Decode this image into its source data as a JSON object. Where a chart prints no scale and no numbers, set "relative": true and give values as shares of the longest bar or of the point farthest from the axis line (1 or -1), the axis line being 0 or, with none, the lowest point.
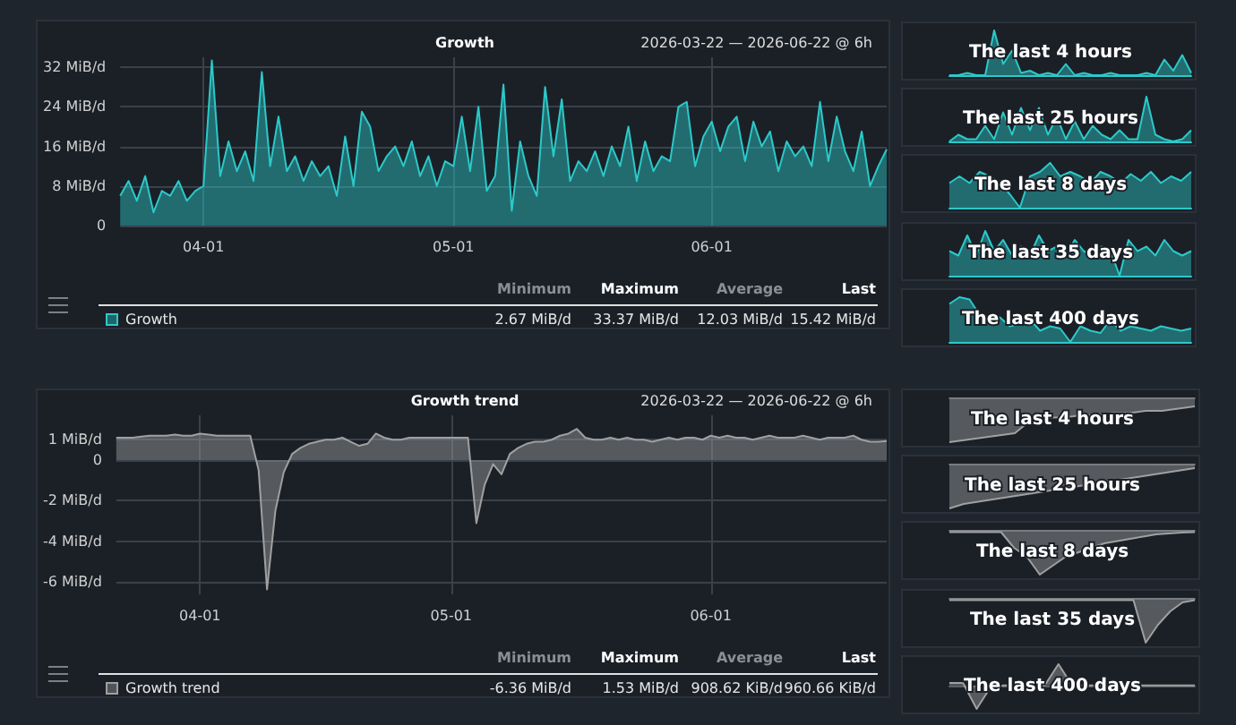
{
  "chart_data": [
    {
      "type": "area",
      "title": "Growth",
      "subtitle": "2026-03-22 — 2026-06-22 @ 6h",
      "legend": "bottom",
      "grid": true,
      "marker": "none",
      "x": [
        "2026-03-22",
        "2026-03-23",
        "2026-03-24",
        "2026-03-25",
        "2026-03-26",
        "2026-03-27",
        "2026-03-28",
        "2026-03-29",
        "2026-03-30",
        "2026-03-31",
        "2026-04-01",
        "2026-04-02",
        "2026-04-03",
        "2026-04-04",
        "2026-04-05",
        "2026-04-06",
        "2026-04-07",
        "2026-04-08",
        "2026-04-09",
        "2026-04-10",
        "2026-04-11",
        "2026-04-12",
        "2026-04-13",
        "2026-04-14",
        "2026-04-15",
        "2026-04-16",
        "2026-04-17",
        "2026-04-18",
        "2026-04-19",
        "2026-04-20",
        "2026-04-21",
        "2026-04-22",
        "2026-04-23",
        "2026-04-24",
        "2026-04-25",
        "2026-04-26",
        "2026-04-27",
        "2026-04-28",
        "2026-04-29",
        "2026-04-30",
        "2026-05-01",
        "2026-05-02",
        "2026-05-03",
        "2026-05-04",
        "2026-05-05",
        "2026-05-06",
        "2026-05-07",
        "2026-05-08",
        "2026-05-09",
        "2026-05-10",
        "2026-05-11",
        "2026-05-12",
        "2026-05-13",
        "2026-05-14",
        "2026-05-15",
        "2026-05-16",
        "2026-05-17",
        "2026-05-18",
        "2026-05-19",
        "2026-05-20",
        "2026-05-21",
        "2026-05-22",
        "2026-05-23",
        "2026-05-24",
        "2026-05-25",
        "2026-05-26",
        "2026-05-27",
        "2026-05-28",
        "2026-05-29",
        "2026-05-30",
        "2026-05-31",
        "2026-06-01",
        "2026-06-02",
        "2026-06-03",
        "2026-06-04",
        "2026-06-05",
        "2026-06-06",
        "2026-06-07",
        "2026-06-08",
        "2026-06-09",
        "2026-06-10",
        "2026-06-11",
        "2026-06-12",
        "2026-06-13",
        "2026-06-14",
        "2026-06-15",
        "2026-06-16",
        "2026-06-17",
        "2026-06-18",
        "2026-06-19",
        "2026-06-20",
        "2026-06-21",
        "2026-06-22"
      ],
      "series": [
        {
          "name": "Growth",
          "color": "#2cc9c9",
          "values": [
            6,
            9,
            5,
            10,
            2.67,
            7,
            6,
            9,
            5,
            7,
            8,
            33.37,
            10,
            17,
            11,
            15,
            9,
            31,
            12,
            22,
            11,
            14,
            9,
            13,
            10,
            12,
            6,
            18,
            8,
            23,
            20,
            11,
            14,
            16,
            12,
            17,
            10,
            14,
            8,
            13,
            12,
            22,
            11,
            24,
            7,
            10,
            28.5,
            3,
            17,
            10,
            6,
            28,
            14,
            25.5,
            9,
            13,
            11,
            15,
            10,
            16,
            12,
            20,
            9,
            17,
            11,
            14,
            13,
            24,
            25,
            12,
            18,
            21,
            15,
            20,
            22,
            13,
            21,
            16,
            19,
            11,
            17,
            14,
            16,
            12,
            25,
            13,
            22,
            15,
            11,
            19,
            8,
            12,
            15.42
          ]
        }
      ],
      "xlim": [
        "2026-03-22",
        "2026-06-22"
      ],
      "xticks": [
        {
          "value": "2026-04-01",
          "label": "04-01"
        },
        {
          "value": "2026-05-01",
          "label": "05-01"
        },
        {
          "value": "2026-06-01",
          "label": "06-01"
        }
      ],
      "ylim": [
        0,
        34
      ],
      "yticks": [
        0,
        {
          "value": 8,
          "label": "8 MiB/d"
        },
        {
          "value": 16,
          "label": "16 MiB/d"
        },
        {
          "value": 24,
          "label": "24 MiB/d"
        },
        {
          "value": 32,
          "label": "32 MiB/d"
        }
      ],
      "annotations": [
        "Minimum",
        "Maximum",
        "Average",
        "Last",
        "2.67 MiB/d",
        "33.37 MiB/d",
        "12.03 MiB/d",
        "15.42 MiB/d"
      ]
    },
    {
      "type": "area",
      "title": "Growth trend",
      "subtitle": "2026-03-22 — 2026-06-22 @ 6h",
      "legend": "bottom",
      "grid": true,
      "marker": "none",
      "x": [
        "2026-03-22",
        "2026-03-23",
        "2026-03-24",
        "2026-03-25",
        "2026-03-26",
        "2026-03-27",
        "2026-03-28",
        "2026-03-29",
        "2026-03-30",
        "2026-03-31",
        "2026-04-01",
        "2026-04-02",
        "2026-04-03",
        "2026-04-04",
        "2026-04-05",
        "2026-04-06",
        "2026-04-07",
        "2026-04-08",
        "2026-04-09",
        "2026-04-10",
        "2026-04-11",
        "2026-04-12",
        "2026-04-13",
        "2026-04-14",
        "2026-04-15",
        "2026-04-16",
        "2026-04-17",
        "2026-04-18",
        "2026-04-19",
        "2026-04-20",
        "2026-04-21",
        "2026-04-22",
        "2026-04-23",
        "2026-04-24",
        "2026-04-25",
        "2026-04-26",
        "2026-04-27",
        "2026-04-28",
        "2026-04-29",
        "2026-04-30",
        "2026-05-01",
        "2026-05-02",
        "2026-05-03",
        "2026-05-04",
        "2026-05-05",
        "2026-05-06",
        "2026-05-07",
        "2026-05-08",
        "2026-05-09",
        "2026-05-10",
        "2026-05-11",
        "2026-05-12",
        "2026-05-13",
        "2026-05-14",
        "2026-05-15",
        "2026-05-16",
        "2026-05-17",
        "2026-05-18",
        "2026-05-19",
        "2026-05-20",
        "2026-05-21",
        "2026-05-22",
        "2026-05-23",
        "2026-05-24",
        "2026-05-25",
        "2026-05-26",
        "2026-05-27",
        "2026-05-28",
        "2026-05-29",
        "2026-05-30",
        "2026-05-31",
        "2026-06-01",
        "2026-06-02",
        "2026-06-03",
        "2026-06-04",
        "2026-06-05",
        "2026-06-06",
        "2026-06-07",
        "2026-06-08",
        "2026-06-09",
        "2026-06-10",
        "2026-06-11",
        "2026-06-12",
        "2026-06-13",
        "2026-06-14",
        "2026-06-15",
        "2026-06-16",
        "2026-06-17",
        "2026-06-18",
        "2026-06-19",
        "2026-06-20",
        "2026-06-21",
        "2026-06-22"
      ],
      "series": [
        {
          "name": "Growth trend",
          "color": "#a0a0a0",
          "values": [
            1.1,
            1.1,
            1.1,
            1.15,
            1.2,
            1.2,
            1.2,
            1.25,
            1.2,
            1.2,
            1.3,
            1.25,
            1.2,
            1.2,
            1.2,
            1.2,
            1.2,
            -0.5,
            -6.36,
            -2.5,
            -0.6,
            0.3,
            0.6,
            0.8,
            0.9,
            1.0,
            1.0,
            1.1,
            0.9,
            0.7,
            0.8,
            1.3,
            1.1,
            1.0,
            1.0,
            1.1,
            1.1,
            1.1,
            1.1,
            1.1,
            1.1,
            1.1,
            1.1,
            -3.1,
            -1.2,
            -0.2,
            -0.7,
            0.3,
            0.6,
            0.8,
            0.9,
            0.9,
            1.0,
            1.2,
            1.3,
            1.53,
            1.1,
            1.0,
            1.0,
            1.1,
            1.0,
            1.1,
            1.0,
            1.0,
            0.9,
            1.0,
            1.1,
            1.0,
            1.1,
            1.1,
            1.0,
            1.2,
            1.1,
            1.2,
            1.1,
            1.1,
            1.0,
            1.1,
            1.2,
            1.1,
            1.1,
            1.1,
            1.2,
            1.1,
            1.0,
            1.1,
            1.1,
            1.1,
            1.2,
            1.0,
            0.9,
            0.9,
            0.94
          ]
        }
      ],
      "xlim": [
        "2026-03-22",
        "2026-06-22"
      ],
      "xticks": [
        {
          "value": "2026-04-01",
          "label": "04-01"
        },
        {
          "value": "2026-05-01",
          "label": "05-01"
        },
        {
          "value": "2026-06-01",
          "label": "06-01"
        }
      ],
      "ylim": [
        -6.6,
        2.2
      ],
      "yticks": [
        {
          "value": -6,
          "label": "-6 MiB/d"
        },
        {
          "value": -4,
          "label": "-4 MiB/d"
        },
        {
          "value": -2,
          "label": "-2 MiB/d"
        },
        0,
        {
          "value": 1,
          "label": "1 MiB/d"
        }
      ],
      "annotations": [
        "Minimum",
        "Maximum",
        "Average",
        "Last",
        "-6.36 MiB/d",
        "1.53 MiB/d",
        "908.62 KiB/d",
        "960.66 KiB/d"
      ]
    },
    {
      "type": "area",
      "title": "The last 4 hours",
      "relative": true,
      "color": "#2cc9c9",
      "categories": [
        null,
        null,
        null,
        null,
        null,
        null,
        null,
        null,
        null,
        null,
        null,
        null,
        null,
        null,
        null,
        null,
        null,
        null,
        null,
        null,
        null,
        null,
        null,
        null,
        null,
        null,
        null,
        null
      ],
      "values": [
        0,
        0,
        0.05,
        0,
        0,
        1,
        0.25,
        0.55,
        0.05,
        0.1,
        0,
        0.05,
        0,
        0.25,
        0,
        0.05,
        0,
        0,
        0.05,
        0,
        0,
        0,
        0.05,
        0,
        0.35,
        0.1,
        0.45,
        0.05
      ]
    },
    {
      "type": "area",
      "title": "The last 25 hours",
      "relative": true,
      "color": "#2cc9c9",
      "categories": [
        null,
        null,
        null,
        null,
        null,
        null,
        null,
        null,
        null,
        null,
        null,
        null,
        null,
        null,
        null,
        null,
        null,
        null,
        null,
        null,
        null,
        null,
        null,
        null,
        null,
        null,
        null,
        null
      ],
      "values": [
        0,
        0.15,
        0.05,
        0.05,
        0.35,
        0.05,
        0.65,
        0.15,
        0.75,
        0.25,
        0.75,
        0.15,
        0.55,
        0.05,
        0.45,
        0.05,
        0.35,
        0.15,
        0.05,
        0.25,
        0.05,
        0.05,
        1,
        0.15,
        0.05,
        0,
        0.05,
        0.25
      ]
    },
    {
      "type": "area",
      "title": "The last 8 days",
      "relative": true,
      "color": "#2cc9c9",
      "categories": [
        null,
        null,
        null,
        null,
        null,
        null,
        null,
        null,
        null,
        null,
        null,
        null,
        null,
        null,
        null,
        null,
        null,
        null,
        null,
        null,
        null,
        null,
        null,
        null,
        null
      ],
      "values": [
        0.55,
        0.7,
        0.55,
        0.8,
        0.7,
        0.55,
        0.3,
        0,
        0.7,
        0.8,
        1,
        0.7,
        0.8,
        0.7,
        0.55,
        0.8,
        0.7,
        0.55,
        0.75,
        0.6,
        0.8,
        0.55,
        0.7,
        0.6,
        0.8
      ]
    },
    {
      "type": "area",
      "title": "The last 35 days",
      "relative": true,
      "color": "#2cc9c9",
      "categories": [
        null,
        null,
        null,
        null,
        null,
        null,
        null,
        null,
        null,
        null,
        null,
        null,
        null,
        null,
        null,
        null,
        null,
        null,
        null,
        null,
        null,
        null,
        null,
        null,
        null,
        null,
        null,
        null
      ],
      "values": [
        0.55,
        0.45,
        0.9,
        0.45,
        1,
        0.55,
        0.8,
        0.45,
        0.65,
        0.45,
        0.9,
        0.55,
        0.65,
        0.45,
        0.8,
        0.55,
        0.45,
        0.65,
        0.55,
        0,
        0.8,
        0.55,
        0.65,
        0.45,
        0.8,
        0.55,
        0.45,
        0.55
      ]
    },
    {
      "type": "area",
      "title": "The last 400 days",
      "relative": true,
      "color": "#2cc9c9",
      "categories": [
        null,
        null,
        null,
        null,
        null,
        null,
        null,
        null,
        null,
        null,
        null,
        null,
        null,
        null,
        null,
        null,
        null,
        null,
        null,
        null,
        null,
        null,
        null,
        null,
        null
      ],
      "values": [
        0.85,
        1,
        0.95,
        0.6,
        0.5,
        0.55,
        0.35,
        0.4,
        0.5,
        0.25,
        0.35,
        0.3,
        0,
        0.35,
        0.25,
        0.2,
        0.5,
        0.25,
        0.35,
        0.3,
        0.25,
        0.35,
        0.3,
        0.25,
        0.3
      ]
    },
    {
      "type": "area",
      "title": "The last 4 hours",
      "relative": true,
      "color": "#a0a0a0",
      "categories": [
        null,
        null,
        null,
        null,
        null,
        null,
        null,
        null,
        null,
        null,
        null,
        null,
        null,
        null,
        null,
        null
      ],
      "values": [
        -1,
        -0.95,
        -0.9,
        -0.85,
        -0.8,
        -0.5,
        -0.45,
        -0.45,
        -0.4,
        -0.4,
        -0.35,
        -0.35,
        -0.3,
        -0.3,
        -0.25,
        -0.2
      ]
    },
    {
      "type": "area",
      "title": "The last 25 hours",
      "relative": true,
      "color": "#a0a0a0",
      "categories": [
        null,
        null,
        null,
        null,
        null,
        null,
        null,
        null,
        null,
        null,
        null,
        null,
        null,
        null,
        null,
        null,
        null,
        null
      ],
      "values": [
        -1,
        -0.9,
        -0.85,
        -0.8,
        -0.75,
        -0.7,
        -0.65,
        -0.6,
        -0.55,
        -0.5,
        -0.45,
        -0.4,
        -0.35,
        -0.3,
        -0.25,
        -0.2,
        -0.15,
        -0.1
      ]
    },
    {
      "type": "area",
      "title": "The last 8 days",
      "relative": true,
      "color": "#a0a0a0",
      "categories": [
        null,
        null,
        null,
        null,
        null,
        null,
        null,
        null,
        null,
        null,
        null,
        null,
        null,
        null,
        null,
        null,
        null,
        null,
        null,
        null
      ],
      "values": [
        -0.05,
        -0.05,
        -0.05,
        -0.05,
        -0.05,
        -0.4,
        -0.6,
        -1,
        -0.8,
        -0.6,
        -0.5,
        -0.4,
        -0.3,
        -0.25,
        -0.2,
        -0.15,
        -0.1,
        -0.08,
        -0.06,
        -0.05
      ]
    },
    {
      "type": "area",
      "title": "The last 35 days",
      "relative": true,
      "color": "#a0a0a0",
      "categories": [
        null,
        null,
        null,
        null,
        null,
        null,
        null,
        null,
        null,
        null,
        null,
        null,
        null,
        null,
        null,
        null,
        null,
        null,
        null,
        null,
        null
      ],
      "values": [
        -0.05,
        -0.05,
        -0.05,
        -0.05,
        -0.05,
        -0.05,
        -0.05,
        -0.05,
        -0.05,
        -0.05,
        -0.05,
        -0.05,
        -0.05,
        -0.05,
        -0.05,
        -0.05,
        -1,
        -0.6,
        -0.3,
        -0.1,
        -0.05
      ]
    },
    {
      "type": "area",
      "title": "The last 400 days",
      "relative": true,
      "color": "#a0a0a0",
      "categories": [
        null,
        null,
        null,
        null,
        null,
        null,
        null,
        null,
        null,
        null,
        null,
        null,
        null,
        null,
        null,
        null,
        null,
        null,
        null
      ],
      "values": [
        0.1,
        0.1,
        -1,
        -0.1,
        0,
        0,
        0,
        0,
        0.9,
        0,
        0,
        0,
        0,
        0,
        0,
        0,
        0,
        0,
        0
      ]
    }
  ]
}
